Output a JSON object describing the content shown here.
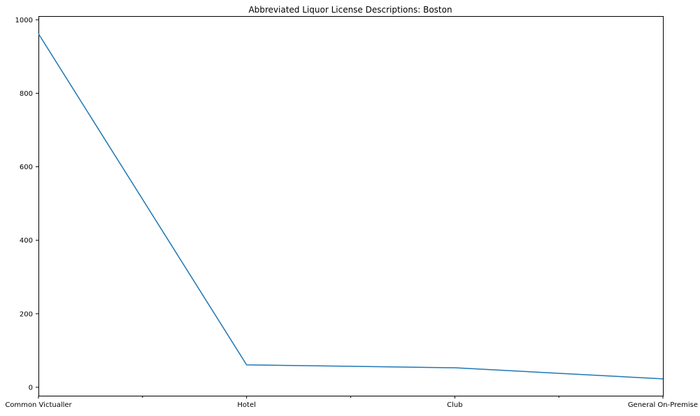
{
  "chart_data": {
    "type": "line",
    "title": "Abbreviated Liquor License Descriptions: Boston",
    "xlabel": "",
    "ylabel": "",
    "categories": [
      "Common Victualler",
      "Hotel",
      "Club",
      "General On-Premise"
    ],
    "values": [
      962,
      61,
      53,
      23
    ],
    "ylim": [
      -23,
      1010
    ],
    "yticks": [
      0,
      200,
      400,
      600,
      800,
      1000
    ],
    "minor_xticks": true,
    "grid": false,
    "legend": "none",
    "line_color": "#1f77b4"
  }
}
